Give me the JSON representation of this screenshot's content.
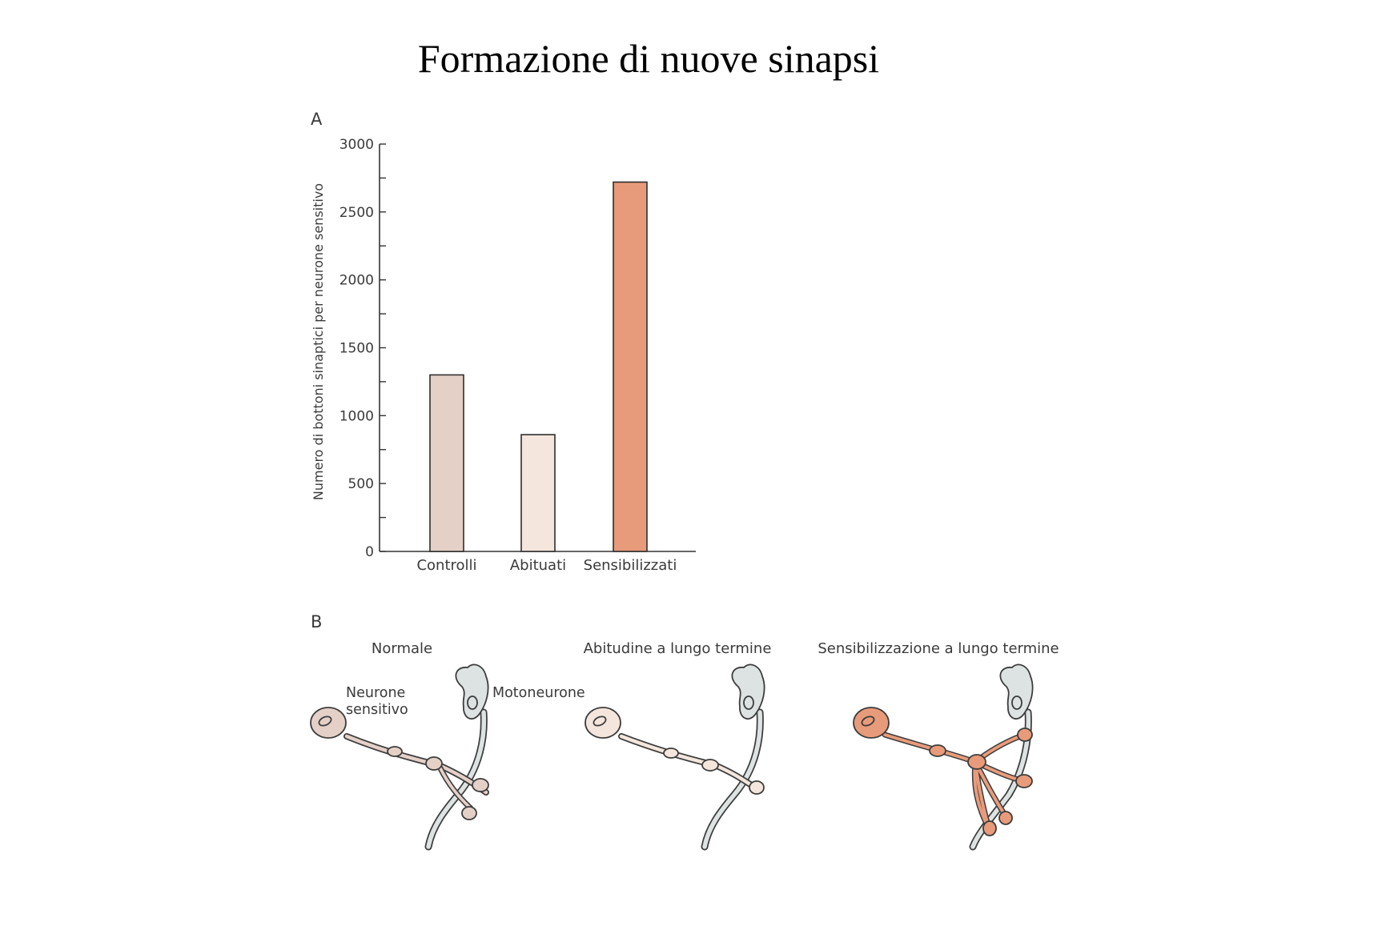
{
  "page_title": "Formazione di nuove sinapsi",
  "panel_a_label": "A",
  "panel_b_label": "B",
  "colors": {
    "controlli": "#e5d0c8",
    "abituati": "#f4e6dc",
    "sensibilizzati": "#e89b7a",
    "motoneurone": "#dde2e2",
    "outline": "#3c3c3c"
  },
  "chart_data": {
    "type": "bar",
    "title": "",
    "xlabel": "",
    "ylabel": "Numero di bottoni sinaptici per neurone sensitivo",
    "categories": [
      "Controlli",
      "Abituati",
      "Sensibilizzati"
    ],
    "values": [
      1300,
      860,
      2720
    ],
    "ylim": [
      0,
      3000
    ],
    "yticks": [
      0,
      500,
      1000,
      1500,
      2000,
      2500,
      3000
    ],
    "grid": false,
    "legend": "none"
  },
  "diagram": {
    "titles": [
      "Normale",
      "Abitudine a lungo termine",
      "Sensibilizzazione a lungo termine"
    ],
    "label_sensory_line1": "Neurone",
    "label_sensory_line2": "sensitivo",
    "label_motor": "Motoneurone"
  }
}
